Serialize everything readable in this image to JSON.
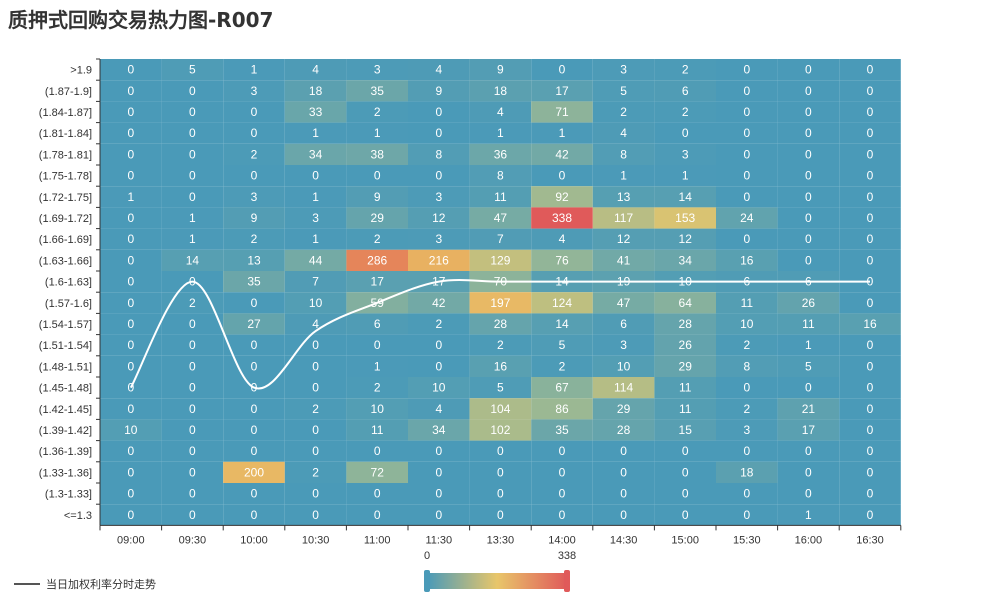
{
  "title": "质押式回购交易热力图-R007",
  "colors": {
    "background": "#ffffff",
    "heat_scale": [
      "#4a9ab8",
      "#9ab894",
      "#e8c66a",
      "#e8a05a",
      "#e05a5a"
    ],
    "curve": "#ffffff",
    "axis": "#333333"
  },
  "chart_data": {
    "type": "heatmap",
    "title": "质押式回购交易热力图-R007",
    "x_categories": [
      "09:00",
      "09:30",
      "10:00",
      "10:30",
      "11:00",
      "11:30",
      "13:30",
      "14:00",
      "14:30",
      "15:00",
      "15:30",
      "16:00",
      "16:30"
    ],
    "y_categories": [
      ">1.9",
      "(1.87-1.9]",
      "(1.84-1.87]",
      "(1.81-1.84]",
      "(1.78-1.81]",
      "(1.75-1.78]",
      "(1.72-1.75]",
      "(1.69-1.72]",
      "(1.66-1.69]",
      "(1.63-1.66]",
      "(1.6-1.63]",
      "(1.57-1.6]",
      "(1.54-1.57]",
      "(1.51-1.54]",
      "(1.48-1.51]",
      "(1.45-1.48]",
      "(1.42-1.45]",
      "(1.39-1.42]",
      "(1.36-1.39]",
      "(1.33-1.36]",
      "(1.3-1.33]",
      "<=1.3"
    ],
    "values": [
      [
        0,
        5,
        1,
        4,
        3,
        4,
        9,
        0,
        3,
        2,
        0,
        0,
        0
      ],
      [
        0,
        0,
        3,
        18,
        35,
        9,
        18,
        17,
        5,
        6,
        0,
        0,
        0
      ],
      [
        0,
        0,
        0,
        33,
        2,
        0,
        4,
        71,
        2,
        2,
        0,
        0,
        0
      ],
      [
        0,
        0,
        0,
        1,
        1,
        0,
        1,
        1,
        4,
        0,
        0,
        0,
        0
      ],
      [
        0,
        0,
        2,
        34,
        38,
        8,
        36,
        42,
        8,
        3,
        0,
        0,
        0
      ],
      [
        0,
        0,
        0,
        0,
        0,
        0,
        8,
        0,
        1,
        1,
        0,
        0,
        0
      ],
      [
        1,
        0,
        3,
        1,
        9,
        3,
        11,
        92,
        13,
        14,
        0,
        0,
        0
      ],
      [
        0,
        1,
        9,
        3,
        29,
        12,
        47,
        338,
        117,
        153,
        24,
        0,
        0
      ],
      [
        0,
        1,
        2,
        1,
        2,
        3,
        7,
        4,
        12,
        12,
        0,
        0,
        0
      ],
      [
        0,
        14,
        13,
        44,
        286,
        216,
        129,
        76,
        41,
        34,
        16,
        0,
        0
      ],
      [
        0,
        0,
        35,
        7,
        17,
        17,
        70,
        14,
        19,
        10,
        6,
        6,
        0
      ],
      [
        0,
        2,
        0,
        10,
        59,
        42,
        197,
        124,
        47,
        64,
        11,
        26,
        0
      ],
      [
        0,
        0,
        27,
        4,
        6,
        2,
        28,
        14,
        6,
        28,
        10,
        11,
        16
      ],
      [
        0,
        0,
        0,
        0,
        0,
        0,
        2,
        5,
        3,
        26,
        2,
        1,
        0
      ],
      [
        0,
        0,
        0,
        0,
        1,
        0,
        16,
        2,
        10,
        29,
        8,
        5,
        0
      ],
      [
        0,
        0,
        0,
        0,
        2,
        10,
        5,
        67,
        114,
        11,
        0,
        0,
        0
      ],
      [
        0,
        0,
        0,
        2,
        10,
        4,
        104,
        86,
        29,
        11,
        2,
        21,
        0
      ],
      [
        10,
        0,
        0,
        0,
        11,
        34,
        102,
        35,
        28,
        15,
        3,
        17,
        0
      ],
      [
        0,
        0,
        0,
        0,
        0,
        0,
        0,
        0,
        0,
        0,
        0,
        0,
        0
      ],
      [
        0,
        0,
        200,
        2,
        72,
        0,
        0,
        0,
        0,
        0,
        18,
        0,
        0
      ],
      [
        0,
        0,
        0,
        0,
        0,
        0,
        0,
        0,
        0,
        0,
        0,
        0,
        0
      ],
      [
        0,
        0,
        0,
        0,
        0,
        0,
        0,
        0,
        0,
        0,
        0,
        1,
        0
      ]
    ],
    "visual_map": {
      "min": 0,
      "max": 338,
      "min_label": "0",
      "max_label": "338"
    },
    "trend_line": {
      "name": "当日加权利率分时走势",
      "y_values": [
        1.465,
        1.615,
        1.465,
        1.545,
        1.585,
        1.615,
        1.615,
        1.615,
        1.615,
        1.615,
        1.615,
        1.615,
        1.615
      ]
    },
    "legend": "bottom-left"
  }
}
